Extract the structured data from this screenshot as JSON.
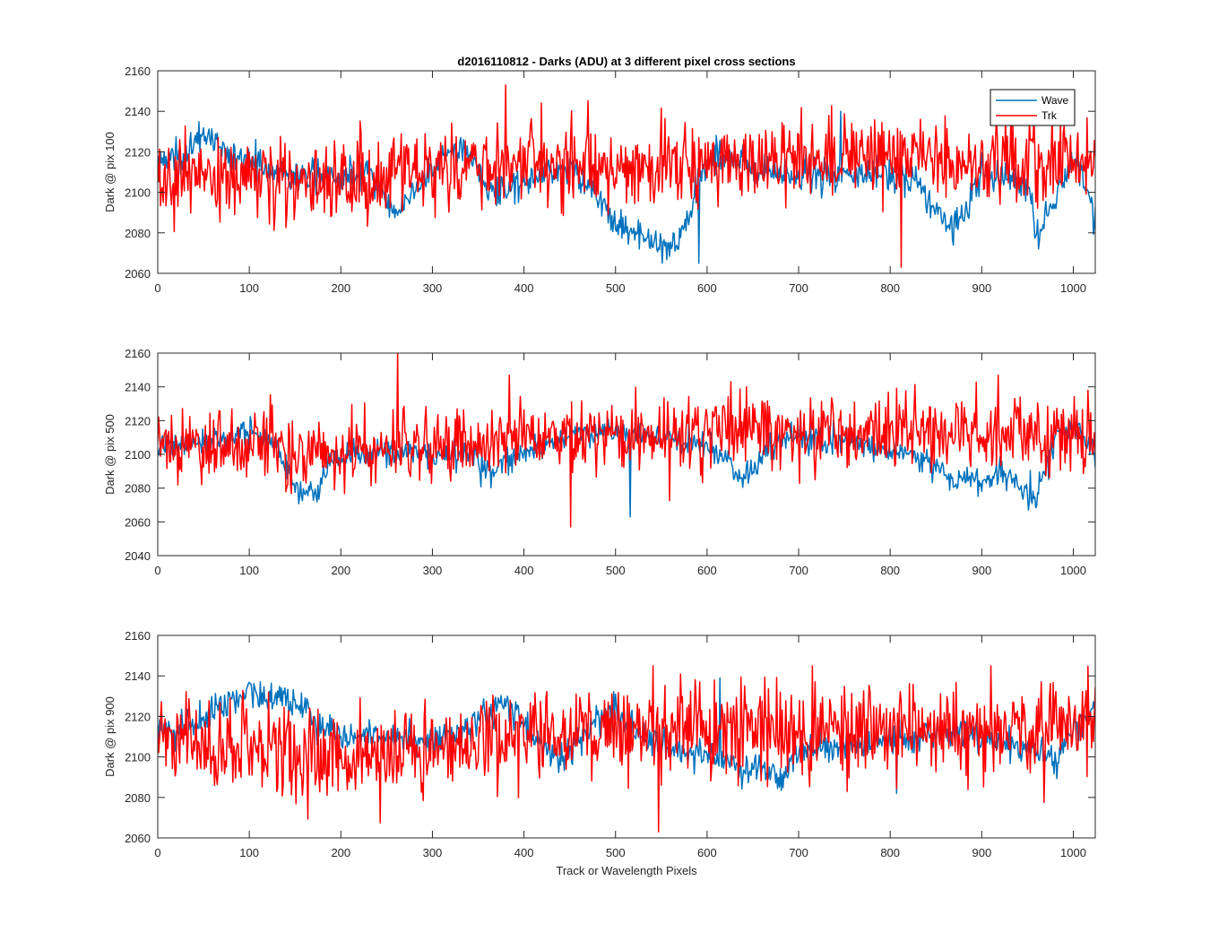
{
  "title": "d2016110812 - Darks (ADU) at 3 different pixel cross sections",
  "xlabel": "Track or Wavelength Pixels",
  "legend": {
    "placement": "top-right of first panel",
    "entries": [
      "Wave",
      "Trk"
    ]
  },
  "colors": {
    "Wave": "#0072BD",
    "Trk": "#FF0000",
    "axes": "#262626"
  },
  "chart_data": [
    {
      "type": "line",
      "ylabel": "Dark @ pix 100",
      "xlim": [
        0,
        1024
      ],
      "ylim": [
        2060,
        2160
      ],
      "xticks": [
        0,
        100,
        200,
        300,
        400,
        500,
        600,
        700,
        800,
        900,
        1000
      ],
      "yticks": [
        2060,
        2080,
        2100,
        2120,
        2140,
        2160
      ],
      "x_step": 1,
      "grid": false,
      "series": [
        {
          "name": "Wave",
          "color": "#0072BD",
          "profile_x": [
            0,
            30,
            50,
            70,
            100,
            150,
            200,
            230,
            260,
            280,
            300,
            320,
            340,
            360,
            400,
            430,
            460,
            480,
            500,
            520,
            550,
            570,
            580,
            590,
            610,
            650,
            700,
            750,
            800,
            830,
            850,
            870,
            900,
            950,
            960,
            980,
            1000,
            1024
          ],
          "profile_y": [
            2115,
            2118,
            2130,
            2120,
            2115,
            2108,
            2108,
            2112,
            2090,
            2100,
            2112,
            2122,
            2120,
            2100,
            2105,
            2112,
            2110,
            2098,
            2085,
            2080,
            2072,
            2075,
            2088,
            2105,
            2120,
            2112,
            2108,
            2110,
            2108,
            2105,
            2090,
            2082,
            2110,
            2105,
            2080,
            2095,
            2118,
            2090
          ],
          "noise": 4,
          "extremes": {
            "max": 2140,
            "min": 2065
          }
        },
        {
          "name": "Trk",
          "color": "#FF0000",
          "profile_x": [
            0,
            100,
            200,
            300,
            350,
            400,
            500,
            600,
            700,
            800,
            900,
            1000,
            1024
          ],
          "profile_y": [
            2105,
            2108,
            2106,
            2108,
            2114,
            2115,
            2112,
            2116,
            2116,
            2116,
            2115,
            2116,
            2116
          ],
          "noise": 10,
          "extremes": {
            "max": 2153,
            "min": 2063
          }
        }
      ]
    },
    {
      "type": "line",
      "ylabel": "Dark @ pix 500",
      "xlim": [
        0,
        1024
      ],
      "ylim": [
        2040,
        2160
      ],
      "xticks": [
        0,
        100,
        200,
        300,
        400,
        500,
        600,
        700,
        800,
        900,
        1000
      ],
      "yticks": [
        2040,
        2060,
        2080,
        2100,
        2120,
        2140,
        2160
      ],
      "x_step": 1,
      "grid": false,
      "series": [
        {
          "name": "Wave",
          "color": "#0072BD",
          "profile_x": [
            0,
            50,
            80,
            100,
            120,
            150,
            170,
            190,
            250,
            300,
            340,
            360,
            400,
            420,
            450,
            500,
            550,
            580,
            600,
            620,
            640,
            660,
            680,
            700,
            750,
            800,
            840,
            870,
            900,
            920,
            940,
            960,
            980,
            1000,
            1024
          ],
          "profile_y": [
            2104,
            2106,
            2110,
            2112,
            2108,
            2082,
            2075,
            2098,
            2102,
            2098,
            2100,
            2090,
            2102,
            2106,
            2112,
            2114,
            2110,
            2108,
            2105,
            2098,
            2085,
            2098,
            2108,
            2110,
            2108,
            2102,
            2095,
            2085,
            2082,
            2090,
            2082,
            2075,
            2110,
            2118,
            2098
          ],
          "noise": 4,
          "extremes": {
            "max": 2125,
            "min": 2063
          }
        },
        {
          "name": "Trk",
          "color": "#FF0000",
          "profile_x": [
            0,
            100,
            200,
            300,
            350,
            400,
            450,
            500,
            600,
            650,
            700,
            800,
            900,
            1000,
            1024
          ],
          "profile_y": [
            2106,
            2104,
            2102,
            2104,
            2108,
            2112,
            2112,
            2113,
            2115,
            2115,
            2114,
            2112,
            2112,
            2114,
            2114
          ],
          "noise": 11,
          "extremes": {
            "max": 2160,
            "min": 2057
          }
        }
      ]
    },
    {
      "type": "line",
      "ylabel": "Dark @ pix 900",
      "xlim": [
        0,
        1024
      ],
      "ylim": [
        2060,
        2160
      ],
      "xticks": [
        0,
        100,
        200,
        300,
        400,
        500,
        600,
        700,
        800,
        900,
        1000
      ],
      "yticks": [
        2060,
        2080,
        2100,
        2120,
        2140,
        2160
      ],
      "x_step": 1,
      "grid": false,
      "series": [
        {
          "name": "Wave",
          "color": "#0072BD",
          "profile_x": [
            0,
            20,
            50,
            80,
            100,
            130,
            160,
            180,
            200,
            250,
            300,
            330,
            360,
            380,
            400,
            430,
            450,
            480,
            500,
            520,
            550,
            600,
            650,
            680,
            700,
            750,
            800,
            850,
            900,
            950,
            980,
            1000,
            1024
          ],
          "profile_y": [
            2115,
            2112,
            2120,
            2128,
            2132,
            2128,
            2125,
            2112,
            2110,
            2110,
            2108,
            2112,
            2122,
            2128,
            2115,
            2100,
            2102,
            2120,
            2124,
            2112,
            2105,
            2100,
            2095,
            2090,
            2102,
            2105,
            2108,
            2112,
            2108,
            2105,
            2098,
            2115,
            2122
          ],
          "noise": 4,
          "extremes": {
            "max": 2139,
            "min": 2082
          }
        },
        {
          "name": "Trk",
          "color": "#FF0000",
          "profile_x": [
            0,
            100,
            200,
            250,
            300,
            350,
            400,
            450,
            500,
            600,
            700,
            800,
            900,
            1000,
            1024
          ],
          "profile_y": [
            2110,
            2105,
            2100,
            2098,
            2102,
            2108,
            2112,
            2112,
            2114,
            2115,
            2114,
            2113,
            2112,
            2115,
            2118
          ],
          "noise": 11,
          "extremes": {
            "max": 2145,
            "min": 2063
          }
        }
      ]
    }
  ]
}
